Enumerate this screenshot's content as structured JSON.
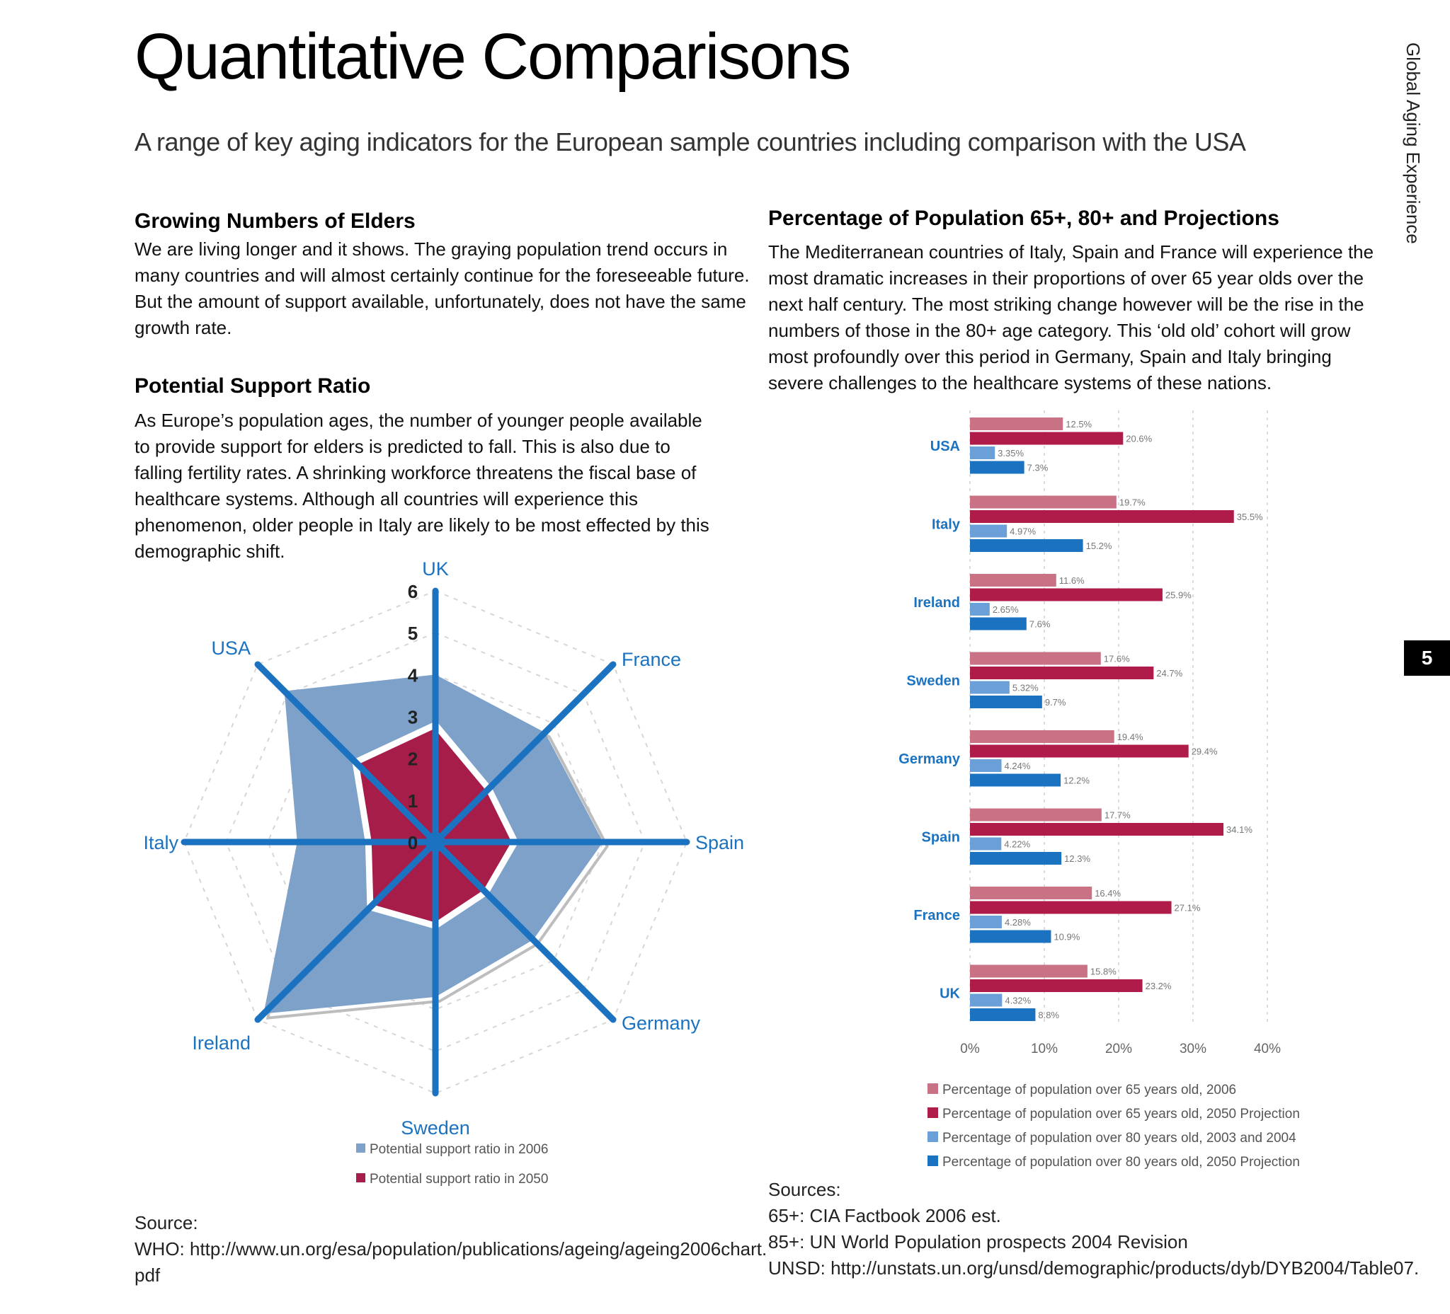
{
  "page": {
    "title": "Quantitative Comparisons",
    "subtitle": "A range of key aging indicators for the European sample countries including comparison with the USA",
    "side_label": "Global Aging Experience",
    "page_number": "5"
  },
  "left": {
    "heading1": "Growing Numbers of Elders",
    "para1": "We are living longer and it shows.  The graying population trend occurs in many countries and will almost certainly continue for the foreseeable future.  But the amount of support available, unfortunately, does not have the same growth rate.",
    "heading2": "Potential Support Ratio",
    "para2": "As Europe’s population ages, the number of younger people available to provide support for elders is predicted to fall. This is also due to falling fertility rates. A shrinking workforce threatens the fiscal base of healthcare systems. Although all countries will experience this phenomenon, older people in Italy are likely to be most effected by this demographic shift.",
    "source_label": "Source:",
    "source_line1": "WHO: http://www.un.org/esa/population/publications/ageing/ageing2006chart.",
    "source_line2": "pdf"
  },
  "right": {
    "heading": "Percentage of Population 65+, 80+ and Projections",
    "para": "The Mediterranean countries of Italy, Spain and France will experience the most dramatic increases in their proportions of over 65 year olds over the next half century. The most striking change however will be the rise in the numbers of those in the 80+ age category. This ‘old old’ cohort  will grow most profoundly over this period in Germany, Spain and Italy bringing severe challenges to the healthcare systems of these nations.",
    "sources_label": "Sources:",
    "source1": "65+:  CIA Factbook 2006 est.",
    "source2": "85+: UN World Population prospects 2004 Revision",
    "source3": "UNSD: http://unstats.un.org/unsd/demographic/products/dyb/DYB2004/Table07."
  },
  "chart_data": [
    {
      "type": "radar",
      "axes": [
        "UK",
        "France",
        "Spain",
        "Germany",
        "Sweden",
        "Ireland",
        "Italy",
        "USA"
      ],
      "ticks": [
        "0",
        "1",
        "2",
        "3",
        "4",
        "5",
        "6"
      ],
      "rmax": 6,
      "series": [
        {
          "name": "Potential support ratio in 2006",
          "values": [
            4.0,
            3.7,
            4.0,
            3.3,
            3.7,
            5.8,
            3.3,
            5.1
          ],
          "color": "#7da1c8"
        },
        {
          "name": "Potential support ratio in 2050",
          "values": [
            2.8,
            1.8,
            1.9,
            1.7,
            2.0,
            2.2,
            1.6,
            2.7
          ],
          "color": "#a61d4a"
        }
      ],
      "legend_placement": "bottom-center",
      "grid": true
    },
    {
      "type": "bar",
      "orientation": "horizontal",
      "categories": [
        "USA",
        "Italy",
        "Ireland",
        "Sweden",
        "Germany",
        "Spain",
        "France",
        "UK"
      ],
      "series": [
        {
          "name": "Percentage of population over 65 years old, 2006",
          "color": "#c97285",
          "values": [
            12.5,
            19.7,
            11.6,
            17.6,
            19.4,
            17.7,
            16.4,
            15.8
          ],
          "labels": [
            "12.5%",
            "19.7%",
            "11.6%",
            "17.6%",
            "19.4%",
            "17.7%",
            "16.4%",
            "15.8%"
          ]
        },
        {
          "name": "Percentage of population over 65 years old, 2050 Projection",
          "color": "#b01c4a",
          "values": [
            20.6,
            35.5,
            25.9,
            24.7,
            29.4,
            34.1,
            27.1,
            23.2
          ],
          "labels": [
            "20.6%",
            "35.5%",
            "25.9%",
            "24.7%",
            "29.4%",
            "34.1%",
            "27.1%",
            "23.2%"
          ]
        },
        {
          "name": "Percentage of population over 80 years old, 2003 and 2004",
          "color": "#6b9fd8",
          "values": [
            3.35,
            4.97,
            2.65,
            5.32,
            4.24,
            4.22,
            4.28,
            4.32
          ],
          "labels": [
            "3.35%",
            "4.97%",
            "2.65%",
            "5.32%",
            "4.24%",
            "4.22%",
            "4.28%",
            "4.32%"
          ]
        },
        {
          "name": "Percentage of population over 80 years old, 2050 Projection",
          "color": "#1b72c0",
          "values": [
            7.3,
            15.2,
            7.6,
            9.7,
            12.2,
            12.3,
            10.9,
            8.8
          ],
          "labels": [
            "7.3%",
            "15.2%",
            "7.6%",
            "9.7%",
            "12.2%",
            "12.3%",
            "10.9%",
            "8.8%"
          ]
        }
      ],
      "xticks": [
        "0%",
        "10%",
        "20%",
        "30%",
        "40%"
      ],
      "xlim": [
        0,
        40
      ],
      "legend_placement": "bottom",
      "grid": true
    }
  ]
}
